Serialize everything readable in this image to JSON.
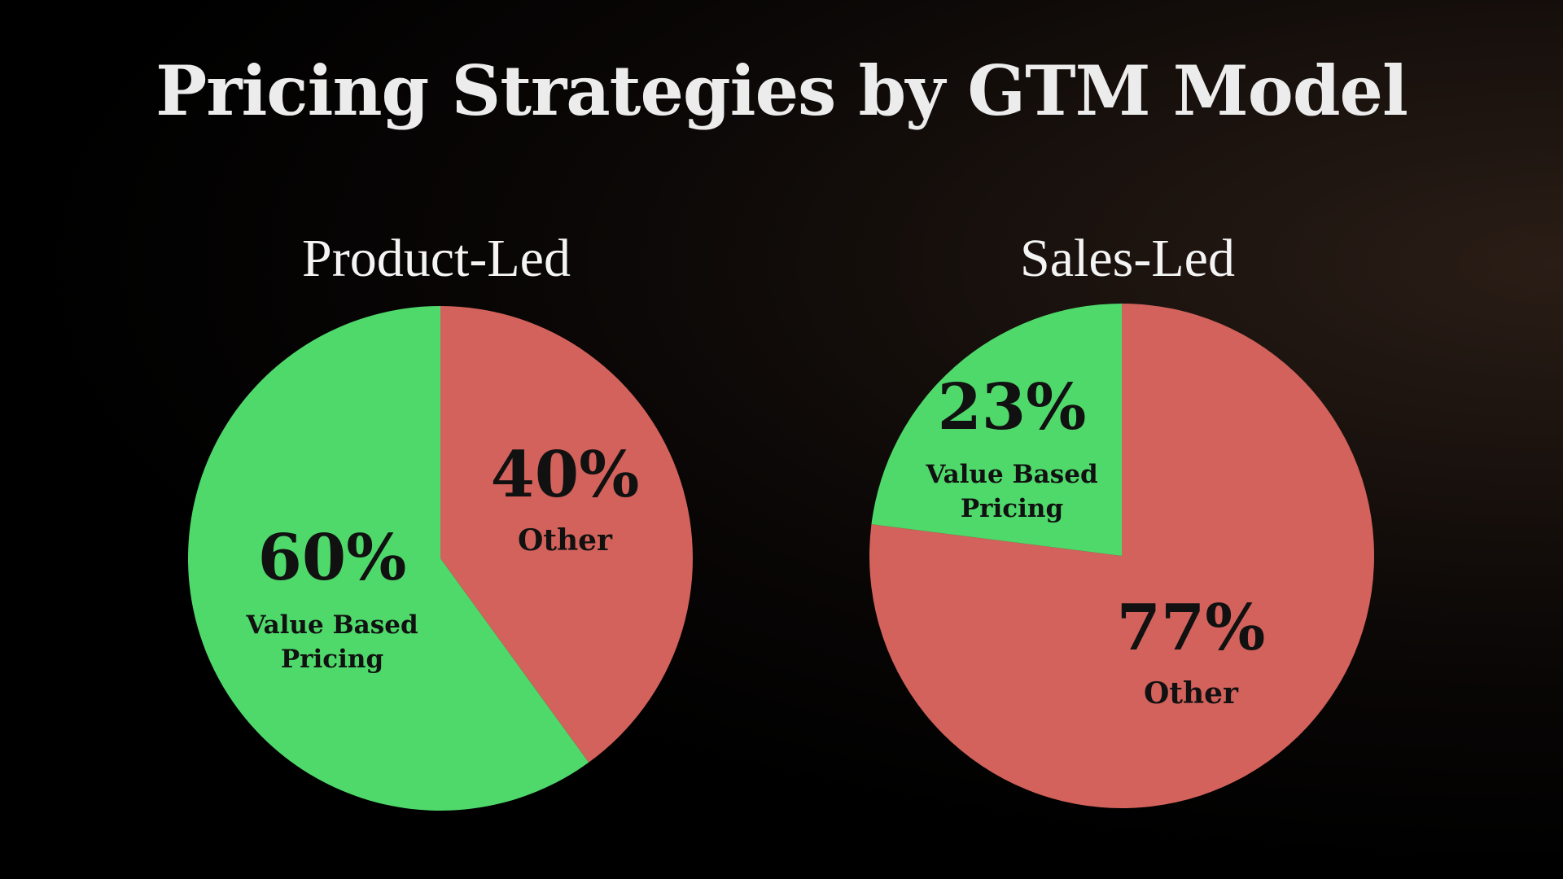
{
  "chart_data": [
    {
      "type": "pie",
      "title": "Product-Led",
      "categories": [
        "Other",
        "Value Based Pricing"
      ],
      "values": [
        40,
        60
      ],
      "labels": [
        {
          "pct": "40%",
          "name": [
            "Other"
          ]
        },
        {
          "pct": "60%",
          "name": [
            "Value Based",
            "Pricing"
          ]
        }
      ],
      "colors": [
        "#d2625b",
        "#4fd96b"
      ]
    },
    {
      "type": "pie",
      "title": "Sales-Led",
      "categories": [
        "Other",
        "Value Based Pricing"
      ],
      "values": [
        77,
        23
      ],
      "labels": [
        {
          "pct": "77%",
          "name": [
            "Other"
          ]
        },
        {
          "pct": "23%",
          "name": [
            "Value Based",
            "Pricing"
          ]
        }
      ],
      "colors": [
        "#d2625b",
        "#4fd96b"
      ]
    }
  ],
  "title": "Pricing Strategies by  GTM Model"
}
